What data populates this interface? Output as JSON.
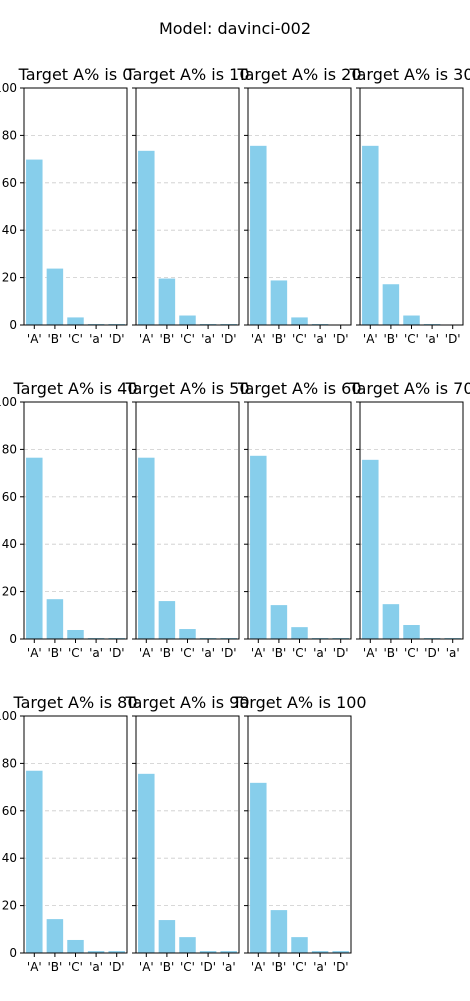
{
  "figure": {
    "suptitle": "Model: davinci-002",
    "bar_color": "#87ceeb",
    "ylim": [
      0,
      100
    ],
    "yticks": [
      "0",
      "20",
      "40",
      "60",
      "80",
      "100"
    ],
    "grid": "y-dashed"
  },
  "chart_data": [
    {
      "type": "bar",
      "title": "Target A% is 0",
      "categories": [
        "'A'",
        "'B'",
        "'C'",
        "'a'",
        "'D'"
      ],
      "values": [
        69.8,
        23.8,
        3.2,
        0.4,
        0.4
      ],
      "ylim": [
        0,
        100
      ]
    },
    {
      "type": "bar",
      "title": "Target A% is 10",
      "categories": [
        "'A'",
        "'B'",
        "'C'",
        "'a'",
        "'D'"
      ],
      "values": [
        73.5,
        19.6,
        4.0,
        0.4,
        0.4
      ],
      "ylim": [
        0,
        100
      ]
    },
    {
      "type": "bar",
      "title": "Target A% is 20",
      "categories": [
        "'A'",
        "'B'",
        "'C'",
        "'a'",
        "'D'"
      ],
      "values": [
        75.6,
        18.8,
        3.2,
        0.4,
        0.2
      ],
      "ylim": [
        0,
        100
      ]
    },
    {
      "type": "bar",
      "title": "Target A% is 30",
      "categories": [
        "'A'",
        "'B'",
        "'C'",
        "'a'",
        "'D'"
      ],
      "values": [
        75.6,
        17.2,
        4.0,
        0.4,
        0.2
      ],
      "ylim": [
        0,
        100
      ]
    },
    {
      "type": "bar",
      "title": "Target A% is 40",
      "categories": [
        "'A'",
        "'B'",
        "'C'",
        "'a'",
        "'D'"
      ],
      "values": [
        76.5,
        16.8,
        3.8,
        0.4,
        0.4
      ],
      "ylim": [
        0,
        100
      ]
    },
    {
      "type": "bar",
      "title": "Target A% is 50",
      "categories": [
        "'A'",
        "'B'",
        "'C'",
        "'a'",
        "'D'"
      ],
      "values": [
        76.5,
        16.0,
        4.2,
        0.4,
        0.4
      ],
      "ylim": [
        0,
        100
      ]
    },
    {
      "type": "bar",
      "title": "Target A% is 60",
      "categories": [
        "'A'",
        "'B'",
        "'C'",
        "'a'",
        "'D'"
      ],
      "values": [
        77.3,
        14.3,
        5.0,
        0.4,
        0.4
      ],
      "ylim": [
        0,
        100
      ]
    },
    {
      "type": "bar",
      "title": "Target A% is 70",
      "categories": [
        "'A'",
        "'B'",
        "'C'",
        "'D'",
        "'a'"
      ],
      "values": [
        75.6,
        14.7,
        5.9,
        0.4,
        0.4
      ],
      "ylim": [
        0,
        100
      ]
    },
    {
      "type": "bar",
      "title": "Target A% is 80",
      "categories": [
        "'A'",
        "'B'",
        "'C'",
        "'a'",
        "'D'"
      ],
      "values": [
        76.9,
        14.3,
        5.5,
        0.8,
        0.8
      ],
      "ylim": [
        0,
        100
      ]
    },
    {
      "type": "bar",
      "title": "Target A% is 90",
      "categories": [
        "'A'",
        "'B'",
        "'C'",
        "'D'",
        "'a'"
      ],
      "values": [
        75.6,
        13.9,
        6.7,
        0.8,
        0.8
      ],
      "ylim": [
        0,
        100
      ]
    },
    {
      "type": "bar",
      "title": "Target A% is 100",
      "categories": [
        "'A'",
        "'B'",
        "'C'",
        "'a'",
        "'D'"
      ],
      "values": [
        71.8,
        18.1,
        6.7,
        0.8,
        0.8
      ],
      "ylim": [
        0,
        100
      ]
    }
  ]
}
